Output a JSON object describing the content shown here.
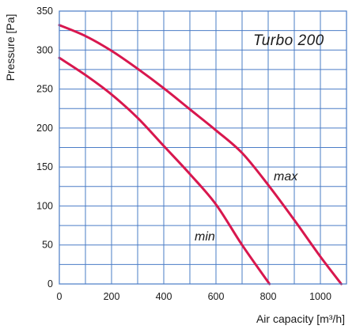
{
  "chart_data": {
    "type": "line",
    "title": "Turbo 200",
    "xlabel": "Air capacity [m³/h]",
    "ylabel": "Pressure [Pa]",
    "xlim": [
      0,
      1100
    ],
    "ylim": [
      0,
      350
    ],
    "x_ticks": [
      0,
      200,
      400,
      600,
      800,
      1000
    ],
    "y_ticks": [
      0,
      50,
      100,
      150,
      200,
      250,
      300,
      350
    ],
    "x_grid_step": 100,
    "y_grid_step": 25,
    "grid": true,
    "line_color": "#d8174e",
    "grid_color": "#4a7cc6",
    "series": [
      {
        "name": "max",
        "points": [
          [
            0,
            332
          ],
          [
            100,
            318
          ],
          [
            200,
            299
          ],
          [
            300,
            276
          ],
          [
            400,
            251
          ],
          [
            500,
            224
          ],
          [
            600,
            197
          ],
          [
            700,
            168
          ],
          [
            800,
            127
          ],
          [
            900,
            82
          ],
          [
            1000,
            35
          ],
          [
            1080,
            0
          ]
        ]
      },
      {
        "name": "min",
        "points": [
          [
            0,
            290
          ],
          [
            100,
            268
          ],
          [
            200,
            243
          ],
          [
            300,
            213
          ],
          [
            400,
            177
          ],
          [
            500,
            141
          ],
          [
            600,
            102
          ],
          [
            700,
            50
          ],
          [
            805,
            0
          ]
        ]
      }
    ]
  }
}
